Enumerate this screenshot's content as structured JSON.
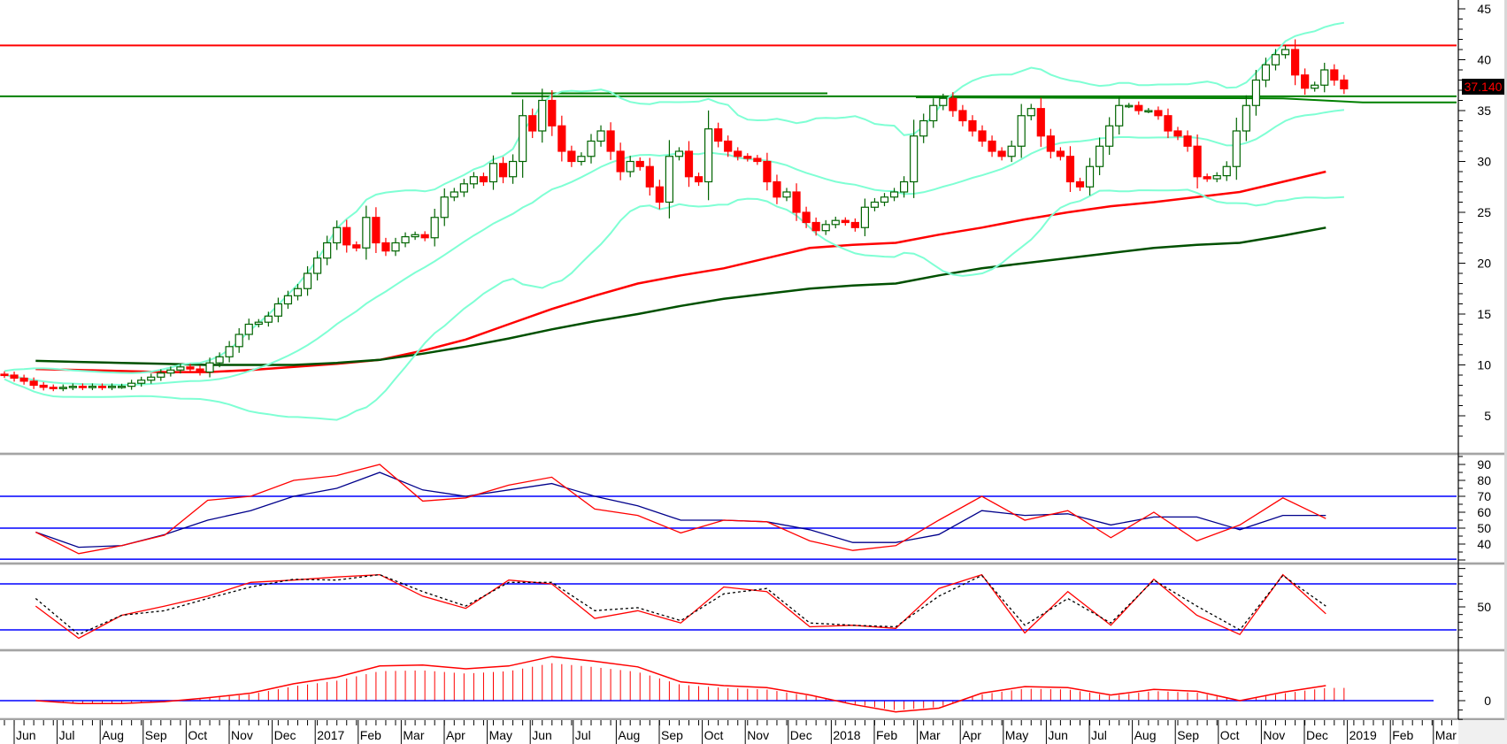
{
  "chart_data": [
    {
      "type": "candlestick",
      "name": "price",
      "interval": "weekly",
      "y_ticks": [
        5,
        10,
        15,
        20,
        25,
        30,
        35,
        40,
        45
      ],
      "ylim": [
        2,
        45.9
      ],
      "last_price_label": "37.140",
      "bull_color": "#006400",
      "bear_color": "#ff0000",
      "weekly_close": [
        9.0,
        8.7,
        8.4,
        8.0,
        7.8,
        7.7,
        7.8,
        7.9,
        7.8,
        7.9,
        7.8,
        7.9,
        7.9,
        8.2,
        8.5,
        8.8,
        9.2,
        9.5,
        9.8,
        9.6,
        9.3,
        10.2,
        10.8,
        11.8,
        13.0,
        14.0,
        14.2,
        14.8,
        16.0,
        16.8,
        17.5,
        19.0,
        20.5,
        22.0,
        23.5,
        21.8,
        21.5,
        24.5,
        22.0,
        21.2,
        22.0,
        22.6,
        22.8,
        22.5,
        24.5,
        26.5,
        27.0,
        27.8,
        28.5,
        28.0,
        29.8,
        28.5,
        30.0,
        34.5,
        33.0,
        36.0,
        33.5,
        31.0,
        30.0,
        30.5,
        32.0,
        33.0,
        31.0,
        29.0,
        30.0,
        29.5,
        27.5,
        26.0,
        30.5,
        31.0,
        28.5,
        28.0,
        33.2,
        32.0,
        31.0,
        30.5,
        30.3,
        30.0,
        28.0,
        26.5,
        27.0,
        25.0,
        24.0,
        23.2,
        23.8,
        24.2,
        24.0,
        23.5,
        25.5,
        26.0,
        26.5,
        27.0,
        28.0,
        32.5,
        34.0,
        35.5,
        36.2,
        35.0,
        34.0,
        33.0,
        32.0,
        31.0,
        30.5,
        31.5,
        34.5,
        35.2,
        32.5,
        31.0,
        30.5,
        28.0,
        27.5,
        29.5,
        31.5,
        33.5,
        35.5,
        35.5,
        35.0,
        35.0,
        34.5,
        33.0,
        32.5,
        31.5,
        28.5,
        28.3,
        28.6,
        29.5,
        33.0,
        35.5,
        38.0,
        39.5,
        40.5,
        41.0,
        38.5,
        37.2,
        37.5,
        39.0,
        38.0,
        37.14
      ],
      "bollinger": {
        "period": 20,
        "stddev": 2,
        "color": "#7fffd4"
      },
      "moving_averages": [
        {
          "name": "ma-red",
          "color": "#ff0000",
          "monthly": [
            9.6,
            9.5,
            9.4,
            9.3,
            9.3,
            9.5,
            9.8,
            10.1,
            10.5,
            11.4,
            12.5,
            14.0,
            15.5,
            16.8,
            18.0,
            18.8,
            19.5,
            20.5,
            21.5,
            21.8,
            22.0,
            22.8,
            23.5,
            24.3,
            25.0,
            25.6,
            26.0,
            26.5,
            27.0,
            28.0,
            29.0
          ]
        },
        {
          "name": "ma-darkgreen",
          "color": "#005000",
          "monthly": [
            10.4,
            10.3,
            10.2,
            10.1,
            10.0,
            10.0,
            10.0,
            10.2,
            10.5,
            11.1,
            11.8,
            12.6,
            13.5,
            14.3,
            15.0,
            15.8,
            16.5,
            17.0,
            17.5,
            17.8,
            18.0,
            18.8,
            19.5,
            20.0,
            20.5,
            21.0,
            21.5,
            21.8,
            22.0,
            22.7,
            23.5
          ]
        }
      ],
      "horizontal_lines": [
        {
          "name": "resistance-line",
          "value": 41.4,
          "color": "#ff0000"
        },
        {
          "name": "support-line",
          "value": 36.4,
          "color": "#008000"
        }
      ]
    },
    {
      "type": "line",
      "name": "rsi",
      "y_ticks": [
        40,
        50,
        60,
        70,
        80,
        90
      ],
      "levels": [
        70,
        50,
        30.5
      ],
      "series": [
        {
          "name": "rsi",
          "color": "#ff0000",
          "monthly": [
            47.5,
            34,
            39,
            45.6,
            67.5,
            70,
            80,
            83,
            90,
            67,
            69,
            77,
            82,
            62,
            58,
            47,
            55,
            54,
            42,
            36,
            39,
            55,
            70,
            55,
            61,
            44,
            60,
            42,
            52,
            69,
            56
          ]
        },
        {
          "name": "rsi-signal",
          "color": "#00008b",
          "monthly": [
            47.5,
            38,
            39,
            46,
            55,
            61,
            70,
            75,
            85,
            74,
            70,
            74,
            78,
            70,
            64,
            55,
            55,
            54,
            49,
            41,
            41,
            46,
            61,
            58,
            59,
            52,
            57,
            57,
            49,
            58,
            58
          ]
        }
      ]
    },
    {
      "type": "line",
      "name": "stochastic",
      "y_ticks": [
        50
      ],
      "levels": [
        80,
        20
      ],
      "series": [
        {
          "name": "stoch-k",
          "color": "#ff0000",
          "monthly": [
            51,
            9,
            39,
            51,
            64,
            82,
            85,
            89,
            92,
            64,
            48,
            85,
            80,
            35,
            45,
            29,
            76,
            70,
            24,
            26,
            22,
            74,
            92,
            16,
            70,
            26,
            86,
            39,
            14,
            92,
            41
          ]
        },
        {
          "name": "stoch-d",
          "color": "#000000",
          "dashed": true,
          "monthly": [
            61,
            14,
            39,
            45,
            61,
            76,
            86,
            85,
            92,
            70,
            51,
            82,
            82,
            45,
            49,
            32,
            67,
            74,
            29,
            26,
            24,
            64,
            91,
            26,
            61,
            29,
            85,
            51,
            20,
            91,
            51
          ]
        }
      ]
    },
    {
      "type": "bar",
      "name": "macd",
      "y_ticks": [
        0
      ],
      "series": [
        {
          "name": "macd-line",
          "color": "#ff0000",
          "monthly": [
            0,
            -0.3,
            -0.3,
            -0.1,
            0.3,
            0.8,
            1.8,
            2.5,
            3.7,
            3.8,
            3.4,
            3.7,
            4.7,
            4.2,
            3.6,
            2.0,
            1.6,
            1.4,
            0.6,
            -0.4,
            -1.2,
            -0.8,
            0.8,
            1.5,
            1.4,
            0.6,
            1.2,
            1.0,
            0,
            0.9,
            1.6
          ]
        }
      ],
      "histogram_color": "#ff0000",
      "zero_line_color": "#0000ff"
    }
  ],
  "x_axis": {
    "labels": [
      "Jun",
      "Jul",
      "Aug",
      "Sep",
      "Oct",
      "Nov",
      "Dec",
      "2017",
      "Feb",
      "Mar",
      "Apr",
      "May",
      "Jun",
      "Jul",
      "Aug",
      "Sep",
      "Oct",
      "Nov",
      "Dec",
      "2018",
      "Feb",
      "Mar",
      "Apr",
      "May",
      "Jun",
      "Jul",
      "Aug",
      "Sep",
      "Oct",
      "Nov",
      "Dec",
      "2019",
      "Feb",
      "Mar"
    ]
  }
}
